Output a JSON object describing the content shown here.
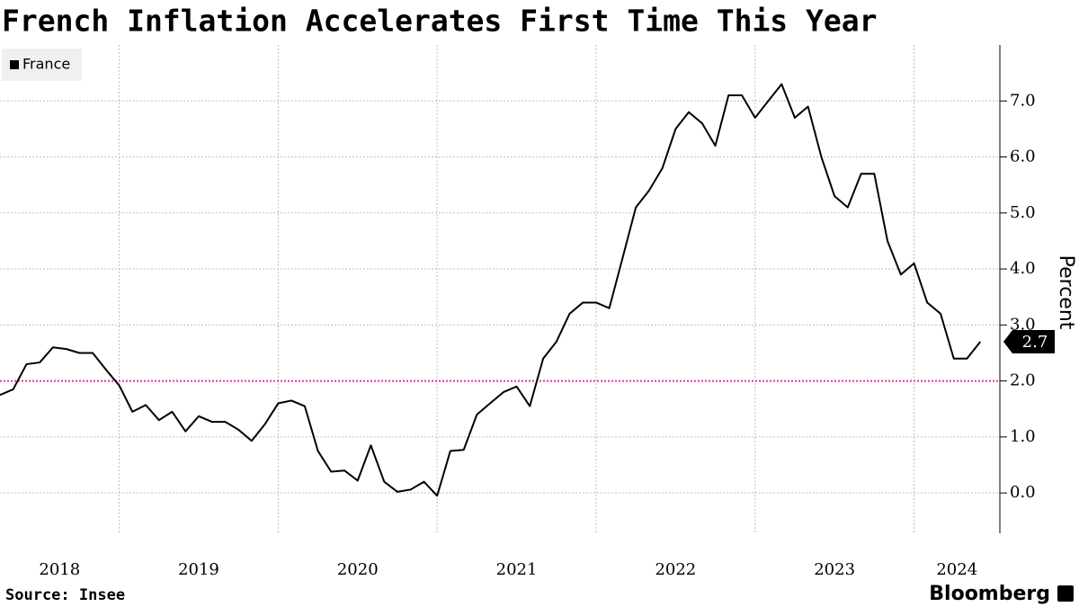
{
  "chart_data": {
    "type": "line",
    "title": "French Inflation Accelerates First Time This Year",
    "y_label": "Percent",
    "source": "Source: Insee",
    "brand": "Bloomberg",
    "legend_position": "top-left",
    "grid": true,
    "reference_line": {
      "value": 2,
      "color": "#e8359c"
    },
    "xlim": [
      2018.25,
      2024.54
    ],
    "xticks": [
      2018,
      2019,
      2020,
      2021,
      2022,
      2023,
      2024
    ],
    "ylim": [
      -0.72,
      8.0
    ],
    "yticks": [
      {
        "value": 0,
        "label": "0.0"
      },
      {
        "value": 1,
        "label": "1.0"
      },
      {
        "value": 2,
        "label": "2.0"
      },
      {
        "value": 3,
        "label": "3.0"
      },
      {
        "value": 4,
        "label": "4.0"
      },
      {
        "value": 5,
        "label": "5.0"
      },
      {
        "value": 6,
        "label": "6.0"
      },
      {
        "value": 7,
        "label": "7.0"
      }
    ],
    "x": [
      2018.25,
      2018.333,
      2018.417,
      2018.5,
      2018.583,
      2018.667,
      2018.75,
      2018.833,
      2018.917,
      2019.0,
      2019.083,
      2019.167,
      2019.25,
      2019.333,
      2019.417,
      2019.5,
      2019.583,
      2019.667,
      2019.75,
      2019.833,
      2019.917,
      2020.0,
      2020.083,
      2020.167,
      2020.25,
      2020.333,
      2020.417,
      2020.5,
      2020.583,
      2020.667,
      2020.75,
      2020.833,
      2020.917,
      2021.0,
      2021.083,
      2021.167,
      2021.25,
      2021.333,
      2021.417,
      2021.5,
      2021.583,
      2021.667,
      2021.75,
      2021.833,
      2021.917,
      2022.0,
      2022.083,
      2022.167,
      2022.25,
      2022.333,
      2022.417,
      2022.5,
      2022.583,
      2022.667,
      2022.75,
      2022.833,
      2022.917,
      2023.0,
      2023.083,
      2023.167,
      2023.25,
      2023.333,
      2023.417,
      2023.5,
      2023.583,
      2023.667,
      2023.75,
      2023.833,
      2023.917,
      2024.0,
      2024.083,
      2024.167,
      2024.25,
      2024.333,
      2024.417
    ],
    "series": [
      {
        "name": "France",
        "color": "#000000",
        "values": [
          1.75,
          1.85,
          2.3,
          2.33,
          2.6,
          2.57,
          2.5,
          2.5,
          2.2,
          1.92,
          1.45,
          1.57,
          1.3,
          1.45,
          1.1,
          1.37,
          1.27,
          1.27,
          1.13,
          0.93,
          1.23,
          1.6,
          1.65,
          1.55,
          0.75,
          0.38,
          0.4,
          0.22,
          0.85,
          0.2,
          0.02,
          0.06,
          0.2,
          -0.05,
          0.75,
          0.77,
          1.4,
          1.6,
          1.8,
          1.9,
          1.55,
          2.4,
          2.7,
          3.2,
          3.4,
          3.4,
          3.3,
          4.2,
          5.1,
          5.4,
          5.8,
          6.5,
          6.8,
          6.6,
          6.2,
          7.1,
          7.1,
          6.7,
          7.0,
          7.3,
          6.7,
          6.9,
          6.0,
          5.3,
          5.1,
          5.7,
          5.7,
          4.5,
          3.9,
          4.1,
          3.4,
          3.2,
          2.4,
          2.4,
          2.7
        ],
        "value_labels": [
          null,
          null,
          null,
          null,
          null,
          null,
          null,
          null,
          null,
          null,
          null,
          null,
          null,
          null,
          null,
          null,
          null,
          null,
          null,
          null,
          null,
          null,
          null,
          null,
          null,
          null,
          null,
          null,
          null,
          null,
          null,
          null,
          null,
          null,
          null,
          null,
          null,
          null,
          null,
          null,
          null,
          null,
          null,
          null,
          null,
          null,
          null,
          null,
          null,
          null,
          null,
          null,
          null,
          null,
          null,
          null,
          null,
          null,
          null,
          null,
          null,
          null,
          null,
          null,
          null,
          null,
          null,
          null,
          null,
          null,
          null,
          null,
          null,
          null,
          "2.7"
        ]
      }
    ]
  }
}
